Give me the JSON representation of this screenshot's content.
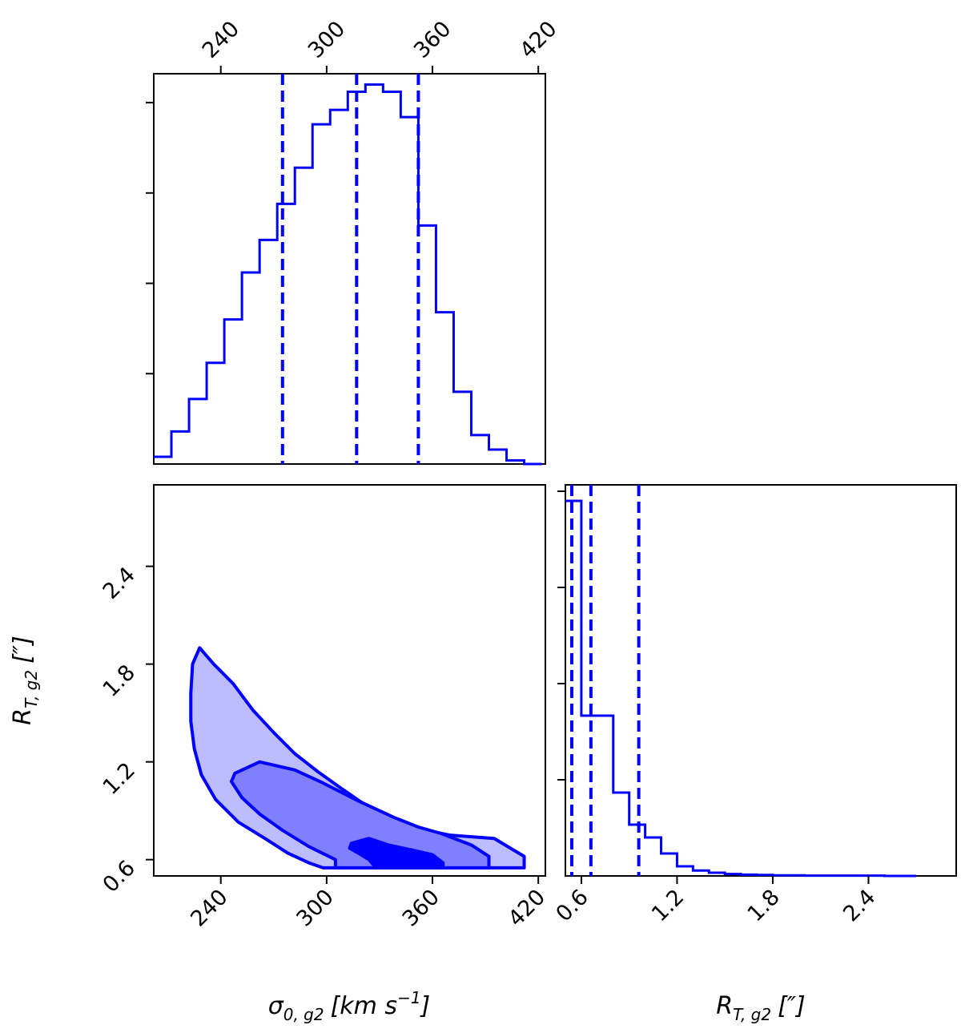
{
  "chart_data": [
    {
      "type": "histogram",
      "panel": "sigma-marginal",
      "bin_edges": [
        202,
        212,
        222,
        232,
        242,
        252,
        262,
        272,
        282,
        292,
        302,
        312,
        322,
        332,
        342,
        352,
        362,
        372,
        382,
        392,
        402,
        412,
        422
      ],
      "counts": [
        0.02,
        0.09,
        0.18,
        0.28,
        0.4,
        0.53,
        0.62,
        0.72,
        0.82,
        0.94,
        0.98,
        1.03,
        1.05,
        1.03,
        0.96,
        0.66,
        0.42,
        0.2,
        0.08,
        0.04,
        0.01,
        0.0
      ],
      "quantiles": [
        275,
        317,
        352
      ],
      "xlim": [
        202,
        424
      ],
      "ylim": [
        0,
        1.08
      ],
      "ytick_values": [
        0.25,
        0.5,
        0.75,
        1.0
      ],
      "top_xticks": [
        240,
        300,
        360,
        420
      ],
      "top_xtick_labels": [
        "240",
        "300",
        "360",
        "420"
      ]
    },
    {
      "type": "contour",
      "panel": "joint-density",
      "xlim": [
        202,
        424
      ],
      "ylim": [
        0.5,
        2.9
      ],
      "levels": [
        {
          "name": "outer",
          "fill": "#bcbcff",
          "polygon": [
            [
              228,
              1.9
            ],
            [
              236,
              1.8
            ],
            [
              247,
              1.68
            ],
            [
              258,
              1.52
            ],
            [
              270,
              1.38
            ],
            [
              282,
              1.25
            ],
            [
              295,
              1.14
            ],
            [
              308,
              1.04
            ],
            [
              320,
              0.95
            ],
            [
              333,
              0.87
            ],
            [
              348,
              0.8
            ],
            [
              370,
              0.75
            ],
            [
              395,
              0.73
            ],
            [
              412,
              0.62
            ],
            [
              412,
              0.55
            ],
            [
              298,
              0.55
            ],
            [
              290,
              0.58
            ],
            [
              278,
              0.64
            ],
            [
              265,
              0.73
            ],
            [
              250,
              0.83
            ],
            [
              237,
              0.97
            ],
            [
              229,
              1.12
            ],
            [
              225,
              1.28
            ],
            [
              223,
              1.45
            ],
            [
              223,
              1.62
            ],
            [
              224,
              1.8
            ]
          ]
        },
        {
          "name": "middle",
          "fill": "#7f7fff",
          "polygon": [
            [
              248,
              1.13
            ],
            [
              262,
              1.2
            ],
            [
              282,
              1.15
            ],
            [
              298,
              1.07
            ],
            [
              318,
              0.96
            ],
            [
              338,
              0.86
            ],
            [
              352,
              0.8
            ],
            [
              365,
              0.76
            ],
            [
              382,
              0.69
            ],
            [
              392,
              0.62
            ],
            [
              392,
              0.55
            ],
            [
              305,
              0.55
            ],
            [
              305,
              0.6
            ],
            [
              290,
              0.68
            ],
            [
              275,
              0.78
            ],
            [
              262,
              0.88
            ],
            [
              252,
              0.98
            ],
            [
              246,
              1.08
            ]
          ]
        },
        {
          "name": "inner",
          "fill": "#0000ff",
          "polygon": [
            [
              314,
              0.7
            ],
            [
              324,
              0.73
            ],
            [
              335,
              0.69
            ],
            [
              348,
              0.66
            ],
            [
              360,
              0.63
            ],
            [
              366,
              0.58
            ],
            [
              366,
              0.55
            ],
            [
              328,
              0.55
            ],
            [
              324,
              0.6
            ],
            [
              318,
              0.64
            ],
            [
              313,
              0.67
            ]
          ]
        }
      ],
      "xticks": [
        240,
        300,
        360,
        420
      ],
      "xtick_labels": [
        "240",
        "300",
        "360",
        "420"
      ],
      "yticks": [
        0.6,
        1.2,
        1.8,
        2.4
      ],
      "ytick_labels": [
        "0.6",
        "1.2",
        "1.8",
        "2.4"
      ],
      "xlabel": "σ0,g2 [km s−1]",
      "ylabel": "RT,g2 [″]"
    },
    {
      "type": "histogram",
      "panel": "rt-marginal",
      "bin_edges": [
        0.5,
        0.6,
        0.7,
        0.8,
        0.9,
        1.0,
        1.1,
        1.2,
        1.3,
        1.4,
        1.5,
        1.6,
        1.7,
        1.8,
        1.9,
        2.0,
        2.1,
        2.2,
        2.3,
        2.4,
        2.5,
        2.6,
        2.7
      ],
      "counts": [
        1.17,
        0.5,
        0.5,
        0.26,
        0.16,
        0.12,
        0.07,
        0.03,
        0.017,
        0.01,
        0.006,
        0.004,
        0.003,
        0.002,
        0.002,
        0.001,
        0.001,
        0.001,
        0.001,
        0.001,
        0.0,
        0.0
      ],
      "quantiles": [
        0.54,
        0.66,
        0.96
      ],
      "xlim": [
        0.5,
        2.95
      ],
      "ylim": [
        0,
        1.22
      ],
      "ytick_values": [
        0.3,
        0.6,
        0.9,
        1.2
      ],
      "xticks": [
        0.6,
        1.2,
        1.8,
        2.4
      ],
      "xtick_labels": [
        "0.6",
        "1.2",
        "1.8",
        "2.4"
      ],
      "xlabel": "RT,g2 [″]"
    }
  ],
  "labels": {
    "xlabel_sigma_sym": "σ",
    "xlabel_sigma_sub": "0, g2",
    "xlabel_sigma_unit_pre": "[km s",
    "xlabel_sigma_exp": "−1",
    "xlabel_sigma_unit_post": "]",
    "rt_sym": "R",
    "rt_sub": "T, g2",
    "rt_unit": "[″]"
  },
  "colors": {
    "line": "#0000ff",
    "fill_outer": "#bcbcff",
    "fill_middle": "#7f7fff",
    "fill_inner": "#0000ff"
  }
}
